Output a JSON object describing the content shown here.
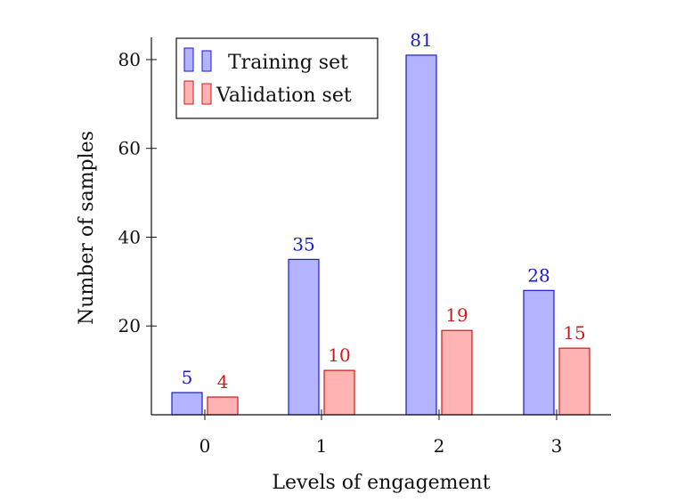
{
  "chart_data": {
    "type": "bar",
    "categories": [
      "0",
      "1",
      "2",
      "3"
    ],
    "series": [
      {
        "name": "Training set",
        "values": [
          5,
          35,
          81,
          28
        ],
        "fill": "#b3b3ff",
        "stroke": "#1a1acc",
        "label_color": "#1a1acc"
      },
      {
        "name": "Validation set",
        "values": [
          4,
          10,
          19,
          15
        ],
        "fill": "#ffb3b3",
        "stroke": "#cc1a1a",
        "label_color": "#cc1a1a"
      }
    ],
    "xlabel": "Levels of engagement",
    "ylabel": "Number of samples",
    "yticks": [
      20,
      40,
      60,
      80
    ],
    "ylim": [
      0,
      85
    ],
    "legend_position": "top-left",
    "grid": false
  }
}
